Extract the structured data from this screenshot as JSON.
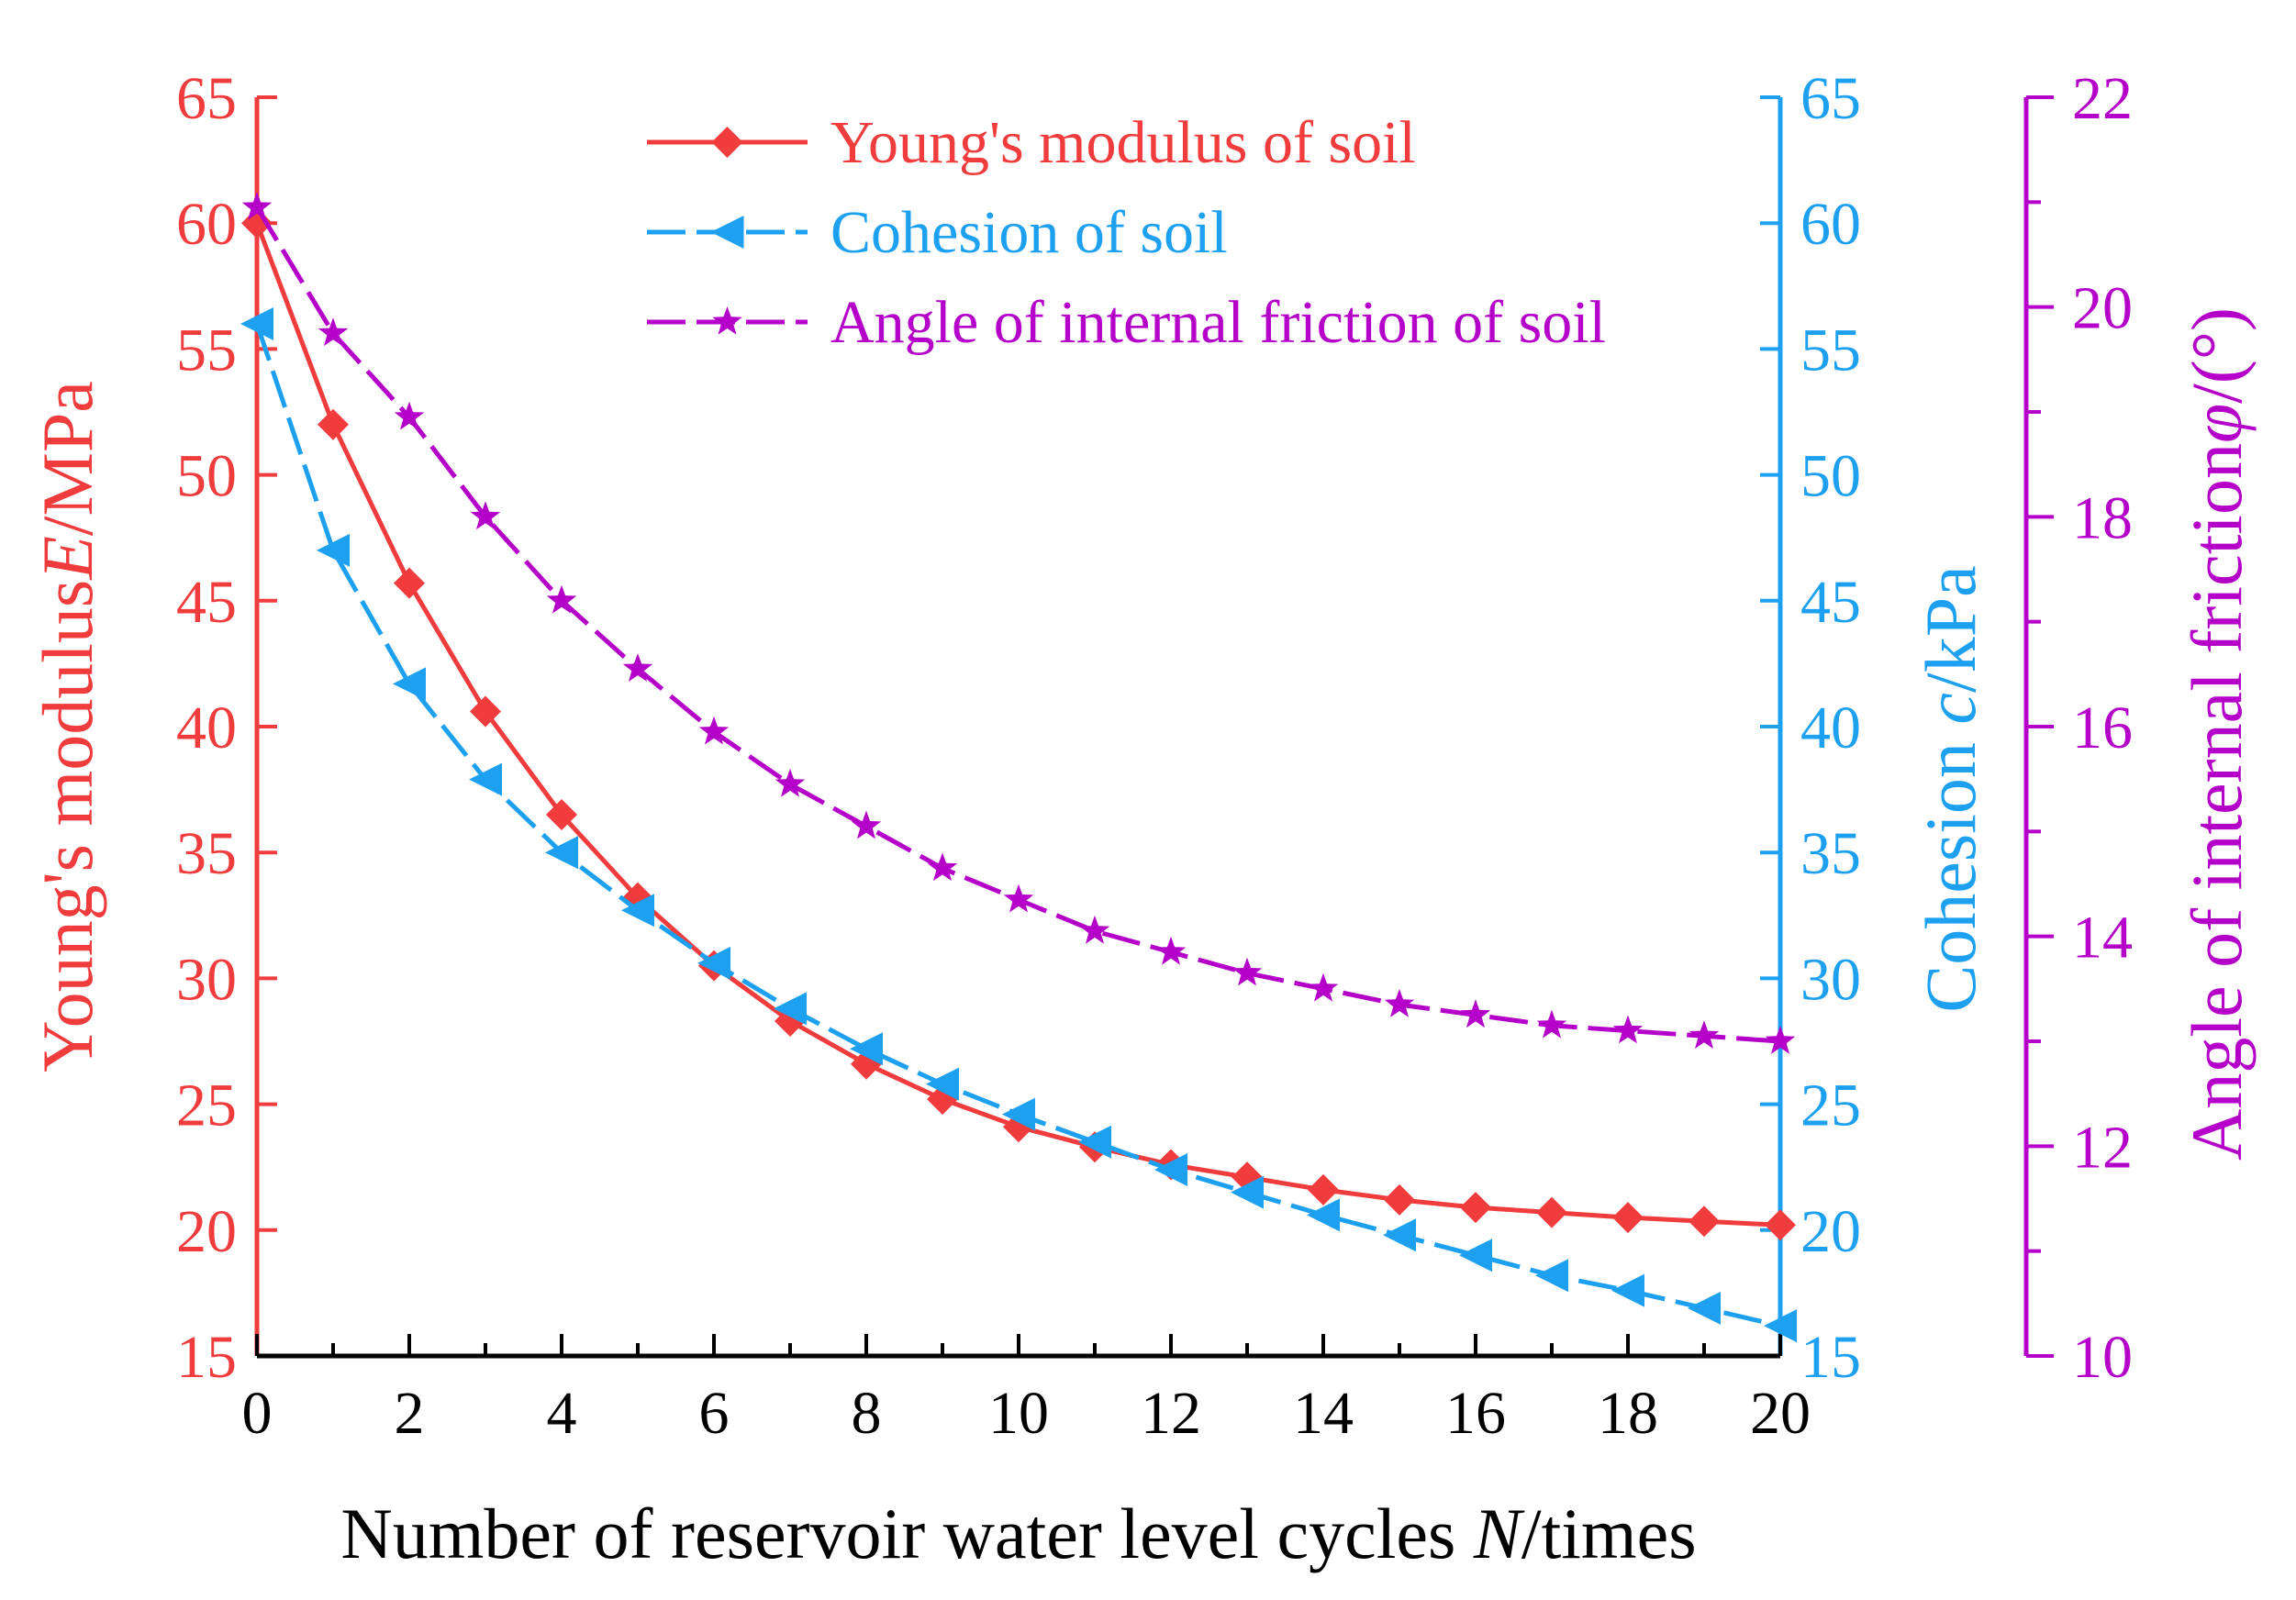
{
  "chart_data": {
    "type": "line",
    "x": [
      0,
      1,
      2,
      3,
      4,
      5,
      6,
      7,
      8,
      9,
      10,
      11,
      12,
      13,
      14,
      15,
      16,
      17,
      18,
      19,
      20
    ],
    "xlim": [
      0,
      20
    ],
    "x_ticks": [
      "0",
      "2",
      "4",
      "6",
      "8",
      "10",
      "12",
      "14",
      "16",
      "18",
      "20"
    ],
    "xlabel": {
      "prefix": "Number of reservoir water level cycles ",
      "var": "N",
      "suffix": "/times"
    },
    "axes": {
      "left": {
        "label_prefix": "Young's modulus",
        "label_var": "E",
        "label_suffix": "/MPa",
        "ylim": [
          15,
          65
        ],
        "ticks": [
          "15",
          "20",
          "25",
          "30",
          "35",
          "40",
          "45",
          "50",
          "55",
          "60",
          "65"
        ],
        "color": "#f03c3c"
      },
      "right1": {
        "label_prefix": "Cohesion ",
        "label_var": "c",
        "label_suffix": "/kPa",
        "ylim": [
          15,
          65
        ],
        "ticks": [
          "15",
          "20",
          "25",
          "30",
          "35",
          "40",
          "45",
          "50",
          "55",
          "60",
          "65"
        ],
        "color": "#1ea0f0"
      },
      "right2": {
        "label_prefix": "Angle of internal friction",
        "label_var": "φ",
        "label_suffix": "/(°)",
        "ylim": [
          10,
          22
        ],
        "ticks": [
          "10",
          "12",
          "14",
          "16",
          "18",
          "20",
          "22"
        ],
        "color": "#b400c8"
      }
    },
    "series": [
      {
        "name": "Young's modulus of soil",
        "axis": "left",
        "marker": "diamond",
        "dash": "solid",
        "color": "#f03c3c",
        "values": [
          60.0,
          52.0,
          45.7,
          40.6,
          36.5,
          33.2,
          30.5,
          28.3,
          26.6,
          25.2,
          24.1,
          23.3,
          22.6,
          22.1,
          21.6,
          21.2,
          20.9,
          20.7,
          20.5,
          20.35,
          20.2
        ]
      },
      {
        "name": "Cohesion of soil",
        "axis": "right1",
        "marker": "triangle-left",
        "dash": "dashed",
        "color": "#1ea0f0",
        "values": [
          56.0,
          47.0,
          41.7,
          37.9,
          35.0,
          32.7,
          30.6,
          28.8,
          27.2,
          25.8,
          24.6,
          23.5,
          22.4,
          21.5,
          20.6,
          19.8,
          19.0,
          18.2,
          17.6,
          16.9,
          16.2
        ]
      },
      {
        "name": "Angle of internal friction of soil",
        "axis": "right2",
        "marker": "star",
        "dash": "dashed",
        "color": "#b400c8",
        "values": [
          20.95,
          19.75,
          18.95,
          18.0,
          17.2,
          16.55,
          15.95,
          15.45,
          15.05,
          14.65,
          14.35,
          14.05,
          13.85,
          13.65,
          13.5,
          13.35,
          13.25,
          13.15,
          13.1,
          13.05,
          13.0
        ]
      }
    ],
    "legend_position": "top-center"
  }
}
